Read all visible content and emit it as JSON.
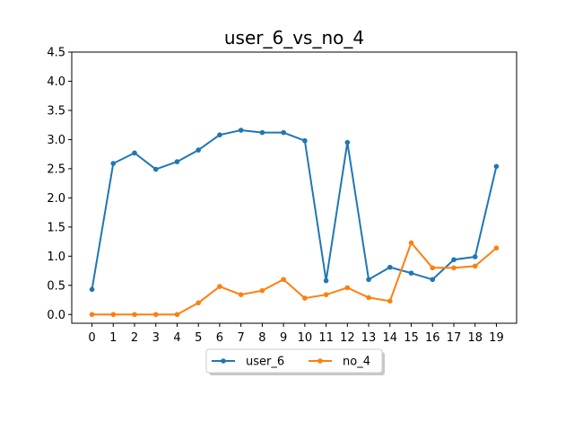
{
  "chart_data": {
    "type": "line",
    "title": "user_6_vs_no_4",
    "xlabel": "",
    "ylabel": "",
    "x": [
      0,
      1,
      2,
      3,
      4,
      5,
      6,
      7,
      8,
      9,
      10,
      11,
      12,
      13,
      14,
      15,
      16,
      17,
      18,
      19
    ],
    "xticks": [
      "0",
      "1",
      "2",
      "3",
      "4",
      "5",
      "6",
      "7",
      "8",
      "9",
      "10",
      "11",
      "12",
      "13",
      "14",
      "15",
      "16",
      "17",
      "18",
      "19"
    ],
    "ylim": [
      -0.15,
      4.5
    ],
    "yticks": [
      "0.0",
      "0.5",
      "1.0",
      "1.5",
      "2.0",
      "2.5",
      "3.0",
      "3.5",
      "4.0",
      "4.5"
    ],
    "grid": false,
    "legend": "bottom-center",
    "series": [
      {
        "name": "user_6",
        "color": "#1f77b4",
        "values": [
          0.43,
          2.59,
          2.77,
          2.49,
          2.62,
          2.82,
          3.08,
          3.16,
          3.12,
          3.12,
          2.98,
          0.58,
          2.95,
          0.6,
          0.81,
          0.71,
          0.6,
          0.94,
          0.99,
          2.54
        ]
      },
      {
        "name": "no_4",
        "color": "#ff7f0e",
        "values": [
          0.0,
          0.0,
          0.0,
          0.0,
          0.0,
          0.2,
          0.48,
          0.34,
          0.41,
          0.6,
          0.28,
          0.34,
          0.46,
          0.29,
          0.23,
          1.23,
          0.8,
          0.8,
          0.83,
          1.14
        ]
      }
    ]
  }
}
